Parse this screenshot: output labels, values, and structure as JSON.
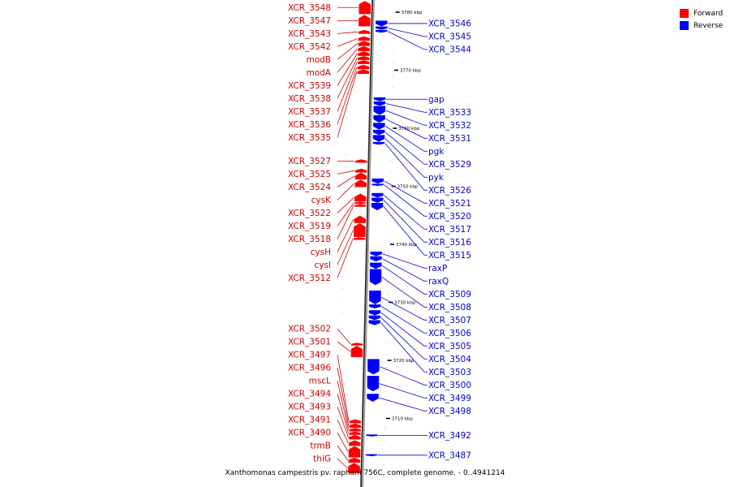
{
  "colors": {
    "forward": "#ff0000",
    "reverse": "#0000ff",
    "forward_label": "#cc0000",
    "reverse_label": "#0000cc"
  },
  "legend": [
    {
      "label": "Forward",
      "color": "#ff0000"
    },
    {
      "label": "Reverse",
      "color": "#0000ff"
    }
  ],
  "caption": "Xanthomonas campestris pv. raphani 756C, complete genome. - 0..4941214",
  "ticks": [
    {
      "kbp": 3780,
      "label": "3780 kbp"
    },
    {
      "kbp": 3770,
      "label": "3770 kbp"
    },
    {
      "kbp": 3760,
      "label": "3760 kbp"
    },
    {
      "kbp": 3750,
      "label": "3750 kbp"
    },
    {
      "kbp": 3740,
      "label": "3740 kbp"
    },
    {
      "kbp": 3730,
      "label": "3730 kbp"
    },
    {
      "kbp": 3720,
      "label": "3720 kbp"
    },
    {
      "kbp": 3710,
      "label": "3710 kbp"
    }
  ],
  "forward_genes": [
    {
      "name": "XCR_3548",
      "start": 3781.9,
      "end": 3779.7
    },
    {
      "name": "XCR_3547",
      "start": 3779.5,
      "end": 3777.6
    },
    {
      "name": "XCR_3543",
      "start": 3776.9,
      "end": 3776.3
    },
    {
      "name": "XCR_3542",
      "start": 3775.8,
      "end": 3775.1
    },
    {
      "name": "modB",
      "start": 3775.0,
      "end": 3774.2
    },
    {
      "name": "modA",
      "start": 3774.1,
      "end": 3773.3
    },
    {
      "name": "XCR_3539",
      "start": 3773.2,
      "end": 3772.5
    },
    {
      "name": "XCR_3538",
      "start": 3772.4,
      "end": 3771.8
    },
    {
      "name": "XCR_3537",
      "start": 3771.7,
      "end": 3771.1
    },
    {
      "name": "XCR_3536",
      "start": 3770.9,
      "end": 3770.2
    },
    {
      "name": "XCR_3535",
      "start": 3770.1,
      "end": 3769.4
    },
    {
      "name": "XCR_3527",
      "start": 3754.6,
      "end": 3754.1
    },
    {
      "name": "XCR_3525",
      "start": 3753.0,
      "end": 3752.4
    },
    {
      "name": "XCR_3524",
      "start": 3752.3,
      "end": 3751.2
    },
    {
      "name": "cysK",
      "start": 3751.1,
      "end": 3749.9
    },
    {
      "name": "XCR_3522",
      "start": 3748.7,
      "end": 3747.4
    },
    {
      "name": "XCR_3519",
      "start": 3747.3,
      "end": 3747.0
    },
    {
      "name": "XCR_3518",
      "start": 3746.9,
      "end": 3746.5
    },
    {
      "name": "cysH",
      "start": 3744.9,
      "end": 3743.7
    },
    {
      "name": "cysI",
      "start": 3743.6,
      "end": 3741.3
    },
    {
      "name": "XCR_3512",
      "start": 3741.2,
      "end": 3740.8
    },
    {
      "name": "XCR_3502",
      "start": 3723.0,
      "end": 3722.6
    },
    {
      "name": "XCR_3501",
      "start": 3722.5,
      "end": 3720.6
    },
    {
      "name": "XCR_3497",
      "start": 3709.8,
      "end": 3709.2
    },
    {
      "name": "XCR_3496",
      "start": 3709.1,
      "end": 3708.4
    },
    {
      "name": "mscL",
      "start": 3708.3,
      "end": 3707.8
    },
    {
      "name": "XCR_3494",
      "start": 3707.7,
      "end": 3707.2
    },
    {
      "name": "XCR_3493",
      "start": 3707.1,
      "end": 3706.4
    },
    {
      "name": "XCR_3491",
      "start": 3706.2,
      "end": 3705.3
    },
    {
      "name": "XCR_3490",
      "start": 3705.2,
      "end": 3703.3
    },
    {
      "name": "trmB",
      "start": 3703.2,
      "end": 3702.4
    },
    {
      "name": "thiG",
      "start": 3702.3,
      "end": 3700.6
    }
  ],
  "reverse_genes": [
    {
      "name": "XCR_3546",
      "start": 3778.5,
      "end": 3777.6
    },
    {
      "name": "XCR_3545",
      "start": 3777.5,
      "end": 3777.0
    },
    {
      "name": "XCR_3544",
      "start": 3776.9,
      "end": 3776.5
    },
    {
      "name": "gap",
      "start": 3765.3,
      "end": 3764.7
    },
    {
      "name": "XCR_3533",
      "start": 3764.6,
      "end": 3763.9
    },
    {
      "name": "XCR_3532",
      "start": 3763.8,
      "end": 3762.3
    },
    {
      "name": "XCR_3531",
      "start": 3762.2,
      "end": 3761.0
    },
    {
      "name": "pgk",
      "start": 3760.9,
      "end": 3759.8
    },
    {
      "name": "XCR_3529",
      "start": 3759.7,
      "end": 3758.9
    },
    {
      "name": "pyk",
      "start": 3758.8,
      "end": 3757.7
    },
    {
      "name": "XCR_3526",
      "start": 3757.6,
      "end": 3757.2
    },
    {
      "name": "XCR_3521",
      "start": 3751.3,
      "end": 3750.5
    },
    {
      "name": "XCR_3520",
      "start": 3750.4,
      "end": 3750.1
    },
    {
      "name": "XCR_3517",
      "start": 3748.8,
      "end": 3748.1
    },
    {
      "name": "XCR_3516",
      "start": 3748.0,
      "end": 3747.2
    },
    {
      "name": "XCR_3515",
      "start": 3747.1,
      "end": 3745.9
    },
    {
      "name": "raxP",
      "start": 3738.7,
      "end": 3738.0
    },
    {
      "name": "raxQ",
      "start": 3737.9,
      "end": 3737.1
    },
    {
      "name": "XCR_3509",
      "start": 3736.8,
      "end": 3735.8
    },
    {
      "name": "XCR_3508",
      "start": 3735.7,
      "end": 3733.0
    },
    {
      "name": "XCR_3507",
      "start": 3732.0,
      "end": 3729.7
    },
    {
      "name": "XCR_3506",
      "start": 3729.6,
      "end": 3729.0
    },
    {
      "name": "XCR_3505",
      "start": 3728.6,
      "end": 3727.8
    },
    {
      "name": "XCR_3504",
      "start": 3727.7,
      "end": 3727.0
    },
    {
      "name": "XCR_3503",
      "start": 3726.9,
      "end": 3726.1
    },
    {
      "name": "XCR_3500",
      "start": 3720.2,
      "end": 3717.6
    },
    {
      "name": "XCR_3499",
      "start": 3717.3,
      "end": 3714.7
    },
    {
      "name": "XCR_3498",
      "start": 3714.2,
      "end": 3712.9
    },
    {
      "name": "XCR_3492",
      "start": 3707.2,
      "end": 3707.0
    },
    {
      "name": "XCR_3487",
      "start": 3703.8,
      "end": 3703.6
    }
  ]
}
